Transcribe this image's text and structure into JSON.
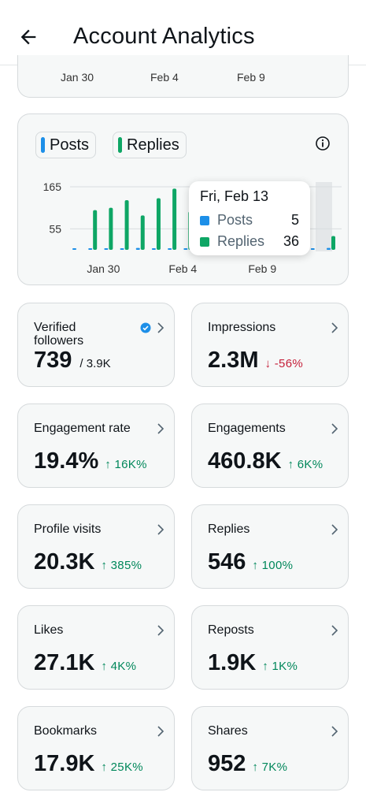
{
  "header": {
    "title": "Account Analytics",
    "back_icon": "arrow-left-icon"
  },
  "top_chart": {
    "ticks": [
      "Jan 30",
      "Feb 4",
      "Feb 9"
    ]
  },
  "chart_data": {
    "type": "bar",
    "legend": [
      {
        "name": "Posts",
        "color": "#1d8fe8"
      },
      {
        "name": "Replies",
        "color": "#0ea665"
      }
    ],
    "y_ticks": [
      "165",
      "55"
    ],
    "x_ticks": [
      "Jan 30",
      "Feb 4",
      "Feb 9"
    ],
    "ylim": [
      0,
      165
    ],
    "x": [
      "Jan 28",
      "Jan 29",
      "Jan 30",
      "Jan 31",
      "Feb 1",
      "Feb 2",
      "Feb 3",
      "Feb 4",
      "Feb 5",
      "Feb 6",
      "Feb 7",
      "Feb 8",
      "Feb 9",
      "Feb 10",
      "Feb 11",
      "Feb 12",
      "Feb 13"
    ],
    "series": [
      {
        "name": "Posts",
        "values": [
          3,
          3,
          4,
          3,
          5,
          3,
          4,
          3,
          4,
          3,
          3,
          3,
          4,
          3,
          4,
          3,
          5
        ]
      },
      {
        "name": "Replies",
        "values": [
          0,
          104,
          110,
          130,
          90,
          135,
          160,
          100,
          170,
          0,
          0,
          0,
          0,
          0,
          0,
          0,
          36
        ]
      }
    ],
    "tooltip": {
      "date": "Fri, Feb 13",
      "posts": "5",
      "replies": "36"
    }
  },
  "stats": [
    {
      "label": "Verified followers",
      "value": "739",
      "sub": "/ 3.9K",
      "verified_icon": "verified-badge-icon"
    },
    {
      "label": "Impressions",
      "value": "2.3M",
      "delta": "↓ -56%",
      "dir": "down"
    },
    {
      "label": "Engagement rate",
      "value": "19.4%",
      "delta": "↑ 16K%",
      "dir": "up"
    },
    {
      "label": "Engagements",
      "value": "460.8K",
      "delta": "↑ 6K%",
      "dir": "up"
    },
    {
      "label": "Profile visits",
      "value": "20.3K",
      "delta": "↑ 385%",
      "dir": "up"
    },
    {
      "label": "Replies",
      "value": "546",
      "delta": "↑ 100%",
      "dir": "up"
    },
    {
      "label": "Likes",
      "value": "27.1K",
      "delta": "↑ 4K%",
      "dir": "up"
    },
    {
      "label": "Reposts",
      "value": "1.9K",
      "delta": "↑ 1K%",
      "dir": "up"
    },
    {
      "label": "Bookmarks",
      "value": "17.9K",
      "delta": "↑ 25K%",
      "dir": "up"
    },
    {
      "label": "Shares",
      "value": "952",
      "delta": "↑ 7K%",
      "dir": "up"
    }
  ],
  "icons": {
    "chevron": "chevron-right-icon",
    "info": "info-icon"
  },
  "colors": {
    "accent": "#1d8fe8",
    "up": "#00875a",
    "down": "#c5203a",
    "card_bg": "#f6f8f8"
  }
}
